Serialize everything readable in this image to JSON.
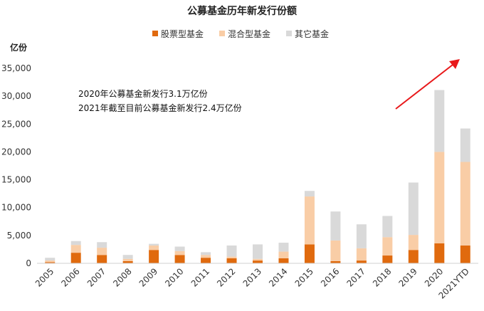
{
  "chart_data": {
    "type": "bar",
    "stacked": true,
    "title": "公募基金历年新发行份额",
    "ylabel": "亿份",
    "ylim": [
      0,
      35000
    ],
    "yticks": [
      "0",
      "5,000",
      "10,000",
      "15,000",
      "20,000",
      "25,000",
      "30,000",
      "35,000"
    ],
    "ytick_values": [
      0,
      5000,
      10000,
      15000,
      20000,
      25000,
      30000,
      35000
    ],
    "legend_position": "top-center",
    "categories": [
      "2005",
      "2006",
      "2007",
      "2008",
      "2009",
      "2010",
      "2011",
      "2012",
      "2013",
      "2014",
      "2015",
      "2016",
      "2017",
      "2018",
      "2019",
      "2020",
      "2021YTD"
    ],
    "series": [
      {
        "name": "股票型基金",
        "color": "#E06A0E",
        "values": [
          200,
          1900,
          1500,
          400,
          2400,
          1500,
          1000,
          900,
          500,
          900,
          3400,
          400,
          500,
          1400,
          2400,
          3600,
          3200
        ]
      },
      {
        "name": "混合型基金",
        "color": "#F9CDA6",
        "values": [
          300,
          1400,
          1300,
          400,
          800,
          700,
          500,
          300,
          300,
          1200,
          8600,
          3700,
          2200,
          3300,
          2700,
          16400,
          15000
        ]
      },
      {
        "name": "其它基金",
        "color": "#D9D9D9",
        "values": [
          500,
          700,
          1000,
          700,
          300,
          800,
          500,
          2000,
          2600,
          1600,
          1000,
          5200,
          4300,
          3800,
          9400,
          11100,
          6000
        ]
      }
    ],
    "annotations": [
      "2020年公募基金新发行3.1万亿份",
      "2021年截至目前公募基金新发行2.4万亿份"
    ],
    "arrow_color": "#E8191B"
  }
}
